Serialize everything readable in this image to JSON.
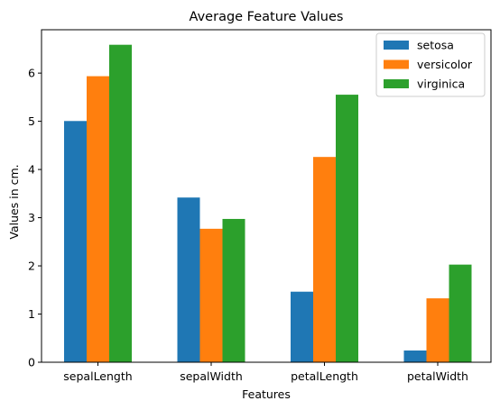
{
  "chart_data": {
    "type": "bar",
    "title": "Average Feature Values",
    "xlabel": "Features",
    "ylabel": "Values in cm.",
    "categories": [
      "sepalLength",
      "sepalWidth",
      "petalLength",
      "petalWidth"
    ],
    "yticks": [
      0,
      1,
      2,
      3,
      4,
      5,
      6
    ],
    "ylim": [
      0,
      6.9
    ],
    "grid": false,
    "legend_position": "top-right",
    "series": [
      {
        "name": "setosa",
        "color": "#1f77b4",
        "values": [
          5.006,
          3.418,
          1.464,
          0.244
        ]
      },
      {
        "name": "versicolor",
        "color": "#ff7f0e",
        "values": [
          5.936,
          2.77,
          4.26,
          1.326
        ]
      },
      {
        "name": "virginica",
        "color": "#2ca02c",
        "values": [
          6.588,
          2.974,
          5.552,
          2.026
        ]
      }
    ]
  }
}
